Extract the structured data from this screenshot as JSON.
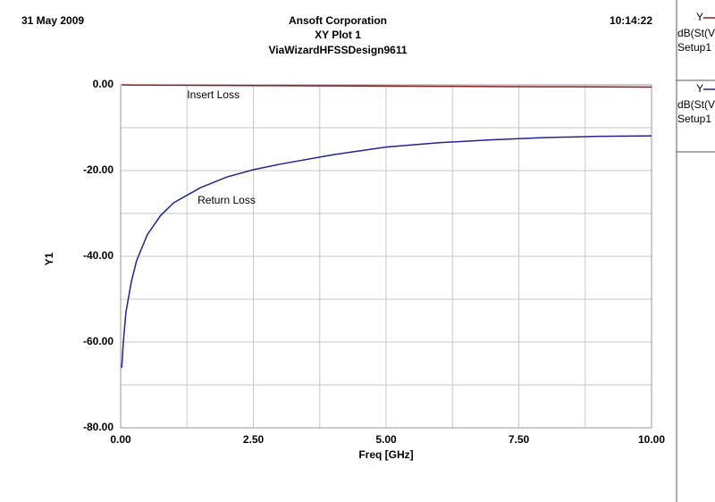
{
  "chart_data": {
    "type": "line",
    "date": "31 May 2009",
    "company": "Ansoft Corporation",
    "title": "XY Plot 1",
    "subtitle": "ViaWizardHFSSDesign9611",
    "time": "10:14:22",
    "xlabel": "Freq [GHz]",
    "ylabel": "Y1",
    "x": [
      0.02,
      0.05,
      0.1,
      0.2,
      0.3,
      0.5,
      0.75,
      1,
      1.5,
      2,
      2.5,
      3,
      4,
      5,
      6,
      7,
      8,
      9,
      10
    ],
    "series": [
      {
        "name": "dB(St(V",
        "legend_prefix": "Y",
        "setup": "Setup1",
        "color": "#8b1a1a",
        "values": [
          -0.01,
          -0.01,
          -0.02,
          -0.03,
          -0.04,
          -0.05,
          -0.07,
          -0.08,
          -0.1,
          -0.13,
          -0.15,
          -0.18,
          -0.23,
          -0.28,
          -0.33,
          -0.38,
          -0.43,
          -0.48,
          -0.53
        ]
      },
      {
        "name": "dB(St(V",
        "legend_prefix": "Y",
        "setup": "Setup1",
        "color": "#23238e",
        "values": [
          -66,
          -60,
          -53,
          -46,
          -41,
          -35,
          -30.5,
          -27.5,
          -24,
          -21.5,
          -19.8,
          -18.5,
          -16.3,
          -14.5,
          -13.5,
          -12.8,
          -12.3,
          -12,
          -11.9
        ]
      }
    ],
    "annotations": [
      {
        "text": "Insert Loss",
        "x": 1.25,
        "y": -2.5
      },
      {
        "text": "Return Loss",
        "x": 1.45,
        "y": -27
      }
    ],
    "xlim": [
      0,
      10
    ],
    "ylim": [
      -80,
      0
    ],
    "xticks": [
      {
        "value": 0,
        "label": "0.00"
      },
      {
        "value": 2.5,
        "label": "2.50"
      },
      {
        "value": 5,
        "label": "5.00"
      },
      {
        "value": 7.5,
        "label": "7.50"
      },
      {
        "value": 10,
        "label": "10.00"
      }
    ],
    "yticks": [
      {
        "value": -80,
        "label": "-80.00"
      },
      {
        "value": -60,
        "label": "-60.00"
      },
      {
        "value": -40,
        "label": "-40.00"
      },
      {
        "value": -20,
        "label": "-20.00"
      },
      {
        "value": 0,
        "label": "0.00"
      }
    ],
    "xgrid": [
      1.25,
      3.75,
      6.25,
      8.75
    ],
    "ygrid": [
      -70,
      -50,
      -30,
      -10
    ],
    "grid": true
  }
}
